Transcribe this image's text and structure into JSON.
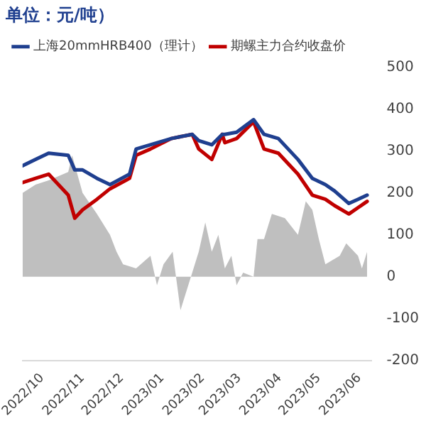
{
  "chart_data": {
    "type": "line",
    "title": "单位：元/吨）",
    "legend": "top left",
    "marker": "none",
    "line_style": "solid",
    "grid": false,
    "xlim": [
      "2022-09-16",
      "2023-06-10"
    ],
    "xticks": [
      {
        "value": "2022-10-01",
        "label": "2022/10"
      },
      {
        "value": "2022-11-01",
        "label": "2022/11"
      },
      {
        "value": "2022-12-01",
        "label": "2022/12"
      },
      {
        "value": "2023-01-01",
        "label": "2023/01"
      },
      {
        "value": "2023-02-01",
        "label": "2023/02"
      },
      {
        "value": "2023-03-01",
        "label": "2023/03"
      },
      {
        "value": "2023-04-01",
        "label": "2023/04"
      },
      {
        "value": "2023-05-01",
        "label": "2023/05"
      },
      {
        "value": "2023-06-01",
        "label": "2023/06"
      }
    ],
    "y2lim": [
      -200,
      500
    ],
    "y2ticks": [
      -200,
      -100,
      0,
      100,
      200,
      300,
      400,
      500
    ],
    "x": [
      "2022-09-16",
      "2022-09-26",
      "2022-10-06",
      "2022-10-21",
      "2022-10-26",
      "2022-11-01",
      "2022-11-12",
      "2022-11-22",
      "2022-12-07",
      "2022-12-12",
      "2022-12-23",
      "2023-01-08",
      "2023-01-24",
      "2023-01-29",
      "2023-02-08",
      "2023-02-16",
      "2023-02-18",
      "2023-02-27",
      "2023-03-12",
      "2023-03-20",
      "2023-03-31",
      "2023-04-15",
      "2023-04-26",
      "2023-05-06",
      "2023-05-13",
      "2023-05-24",
      "2023-05-31",
      "2023-06-07"
    ],
    "series": [
      {
        "type": "area",
        "axis": "y2",
        "color": "#bfbfbf",
        "x": [
          "2022-09-16",
          "2022-09-26",
          "2022-10-06",
          "2022-10-21",
          "2022-10-24",
          "2022-11-01",
          "2022-11-12",
          "2022-11-22",
          "2022-11-27",
          "2022-12-02",
          "2022-12-12",
          "2022-12-23",
          "2022-12-28",
          "2023-01-02",
          "2023-01-09",
          "2023-01-15",
          "2023-01-29",
          "2023-02-03",
          "2023-02-08",
          "2023-02-13",
          "2023-02-18",
          "2023-02-23",
          "2023-02-27",
          "2023-03-04",
          "2023-03-12",
          "2023-03-15",
          "2023-03-20",
          "2023-03-26",
          "2023-04-05",
          "2023-04-10",
          "2023-04-15",
          "2023-04-21",
          "2023-04-26",
          "2023-05-01",
          "2023-05-06",
          "2023-05-17",
          "2023-05-22",
          "2023-05-31",
          "2023-06-03",
          "2023-06-07"
        ],
        "values": [
          200,
          220,
          230,
          250,
          290,
          200,
          150,
          100,
          60,
          30,
          20,
          50,
          -20,
          30,
          60,
          -80,
          60,
          130,
          60,
          100,
          20,
          50,
          -20,
          10,
          0,
          90,
          90,
          150,
          140,
          120,
          100,
          180,
          160,
          90,
          30,
          50,
          80,
          50,
          20,
          60
        ]
      },
      {
        "name": "上海20mmHRB400（理计）",
        "axis": "y2",
        "color": "#1f3f8f",
        "values": [
          265,
          280,
          295,
          290,
          255,
          255,
          235,
          220,
          245,
          305,
          315,
          330,
          340,
          325,
          315,
          340,
          340,
          345,
          375,
          340,
          330,
          280,
          235,
          220,
          205,
          175,
          185,
          195
        ]
      },
      {
        "name": "期螺主力合约收盘价",
        "axis": "y2",
        "color": "#c00000",
        "values": [
          225,
          235,
          245,
          195,
          140,
          160,
          185,
          210,
          235,
          290,
          305,
          330,
          340,
          305,
          280,
          340,
          320,
          330,
          370,
          305,
          295,
          245,
          195,
          185,
          170,
          150,
          165,
          180
        ]
      }
    ]
  }
}
